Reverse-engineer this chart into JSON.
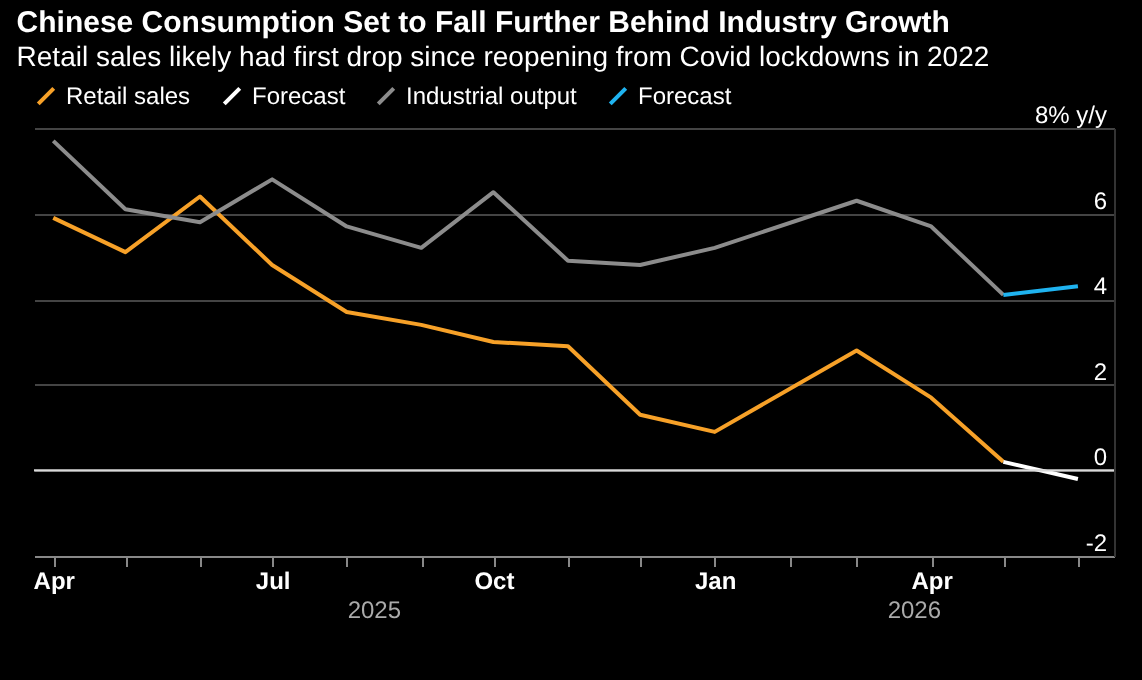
{
  "chart_data": {
    "type": "line",
    "title": "Chinese Consumption Set to Fall Further Behind Industry Growth",
    "subtitle": "Retail sales likely had first drop since reopening from Covid lockdowns in 2022",
    "series": [
      {
        "name": "Retail sales",
        "color": "#f7a128",
        "x": [
          "2025-04",
          "2025-05",
          "2025-06",
          "2025-07",
          "2025-08",
          "2025-09",
          "2025-10",
          "2025-11",
          "2025-12",
          "2026-01",
          "2026-03",
          "2026-04",
          "2026-05"
        ],
        "values": [
          5.9,
          5.1,
          6.4,
          4.8,
          3.7,
          3.4,
          3.0,
          2.9,
          1.3,
          0.9,
          2.8,
          1.7,
          0.2
        ]
      },
      {
        "name": "Forecast",
        "color": "#ffffff",
        "x": [
          "2026-05",
          "2026-06"
        ],
        "values": [
          0.2,
          -0.2
        ]
      },
      {
        "name": "Industrial output",
        "color": "#8c8c8c",
        "x": [
          "2025-04",
          "2025-05",
          "2025-06",
          "2025-07",
          "2025-08",
          "2025-09",
          "2025-10",
          "2025-11",
          "2025-12",
          "2026-01",
          "2026-03",
          "2026-04",
          "2026-05"
        ],
        "values": [
          7.7,
          6.1,
          5.8,
          6.8,
          5.7,
          5.2,
          6.5,
          4.9,
          4.8,
          5.2,
          6.3,
          5.7,
          4.1
        ]
      },
      {
        "name": "Forecast",
        "color": "#1fb3f0",
        "x": [
          "2026-05",
          "2026-06"
        ],
        "values": [
          4.1,
          4.3
        ]
      }
    ],
    "xlim": [
      "2025-03-24",
      "2026-06-16"
    ],
    "xticks": [
      {
        "value": "2025-04",
        "label": "Apr"
      },
      {
        "value": "2025-05",
        "label": null
      },
      {
        "value": "2025-06",
        "label": null
      },
      {
        "value": "2025-07",
        "label": "Jul"
      },
      {
        "value": "2025-08",
        "label": null
      },
      {
        "value": "2025-09",
        "label": null
      },
      {
        "value": "2025-10",
        "label": "Oct"
      },
      {
        "value": "2025-11",
        "label": null
      },
      {
        "value": "2025-12",
        "label": null
      },
      {
        "value": "2026-01",
        "label": "Jan"
      },
      {
        "value": "2026-02",
        "label": null
      },
      {
        "value": "2026-03",
        "label": null
      },
      {
        "value": "2026-04",
        "label": "Apr"
      },
      {
        "value": "2026-05",
        "label": null
      },
      {
        "value": "2026-06",
        "label": null
      }
    ],
    "ylim": [
      -2,
      8
    ],
    "yticks": [
      -2,
      0,
      2,
      4,
      6,
      {
        "value": 8,
        "label": "8% y/y"
      }
    ],
    "ref_lines": [
      {
        "axis": "y",
        "value": 0,
        "color": "#d9d9d9"
      }
    ],
    "annotations": [
      "2025",
      "2026"
    ],
    "grid": "y",
    "legend": "top left",
    "marker": "none",
    "line_style": "solid"
  }
}
